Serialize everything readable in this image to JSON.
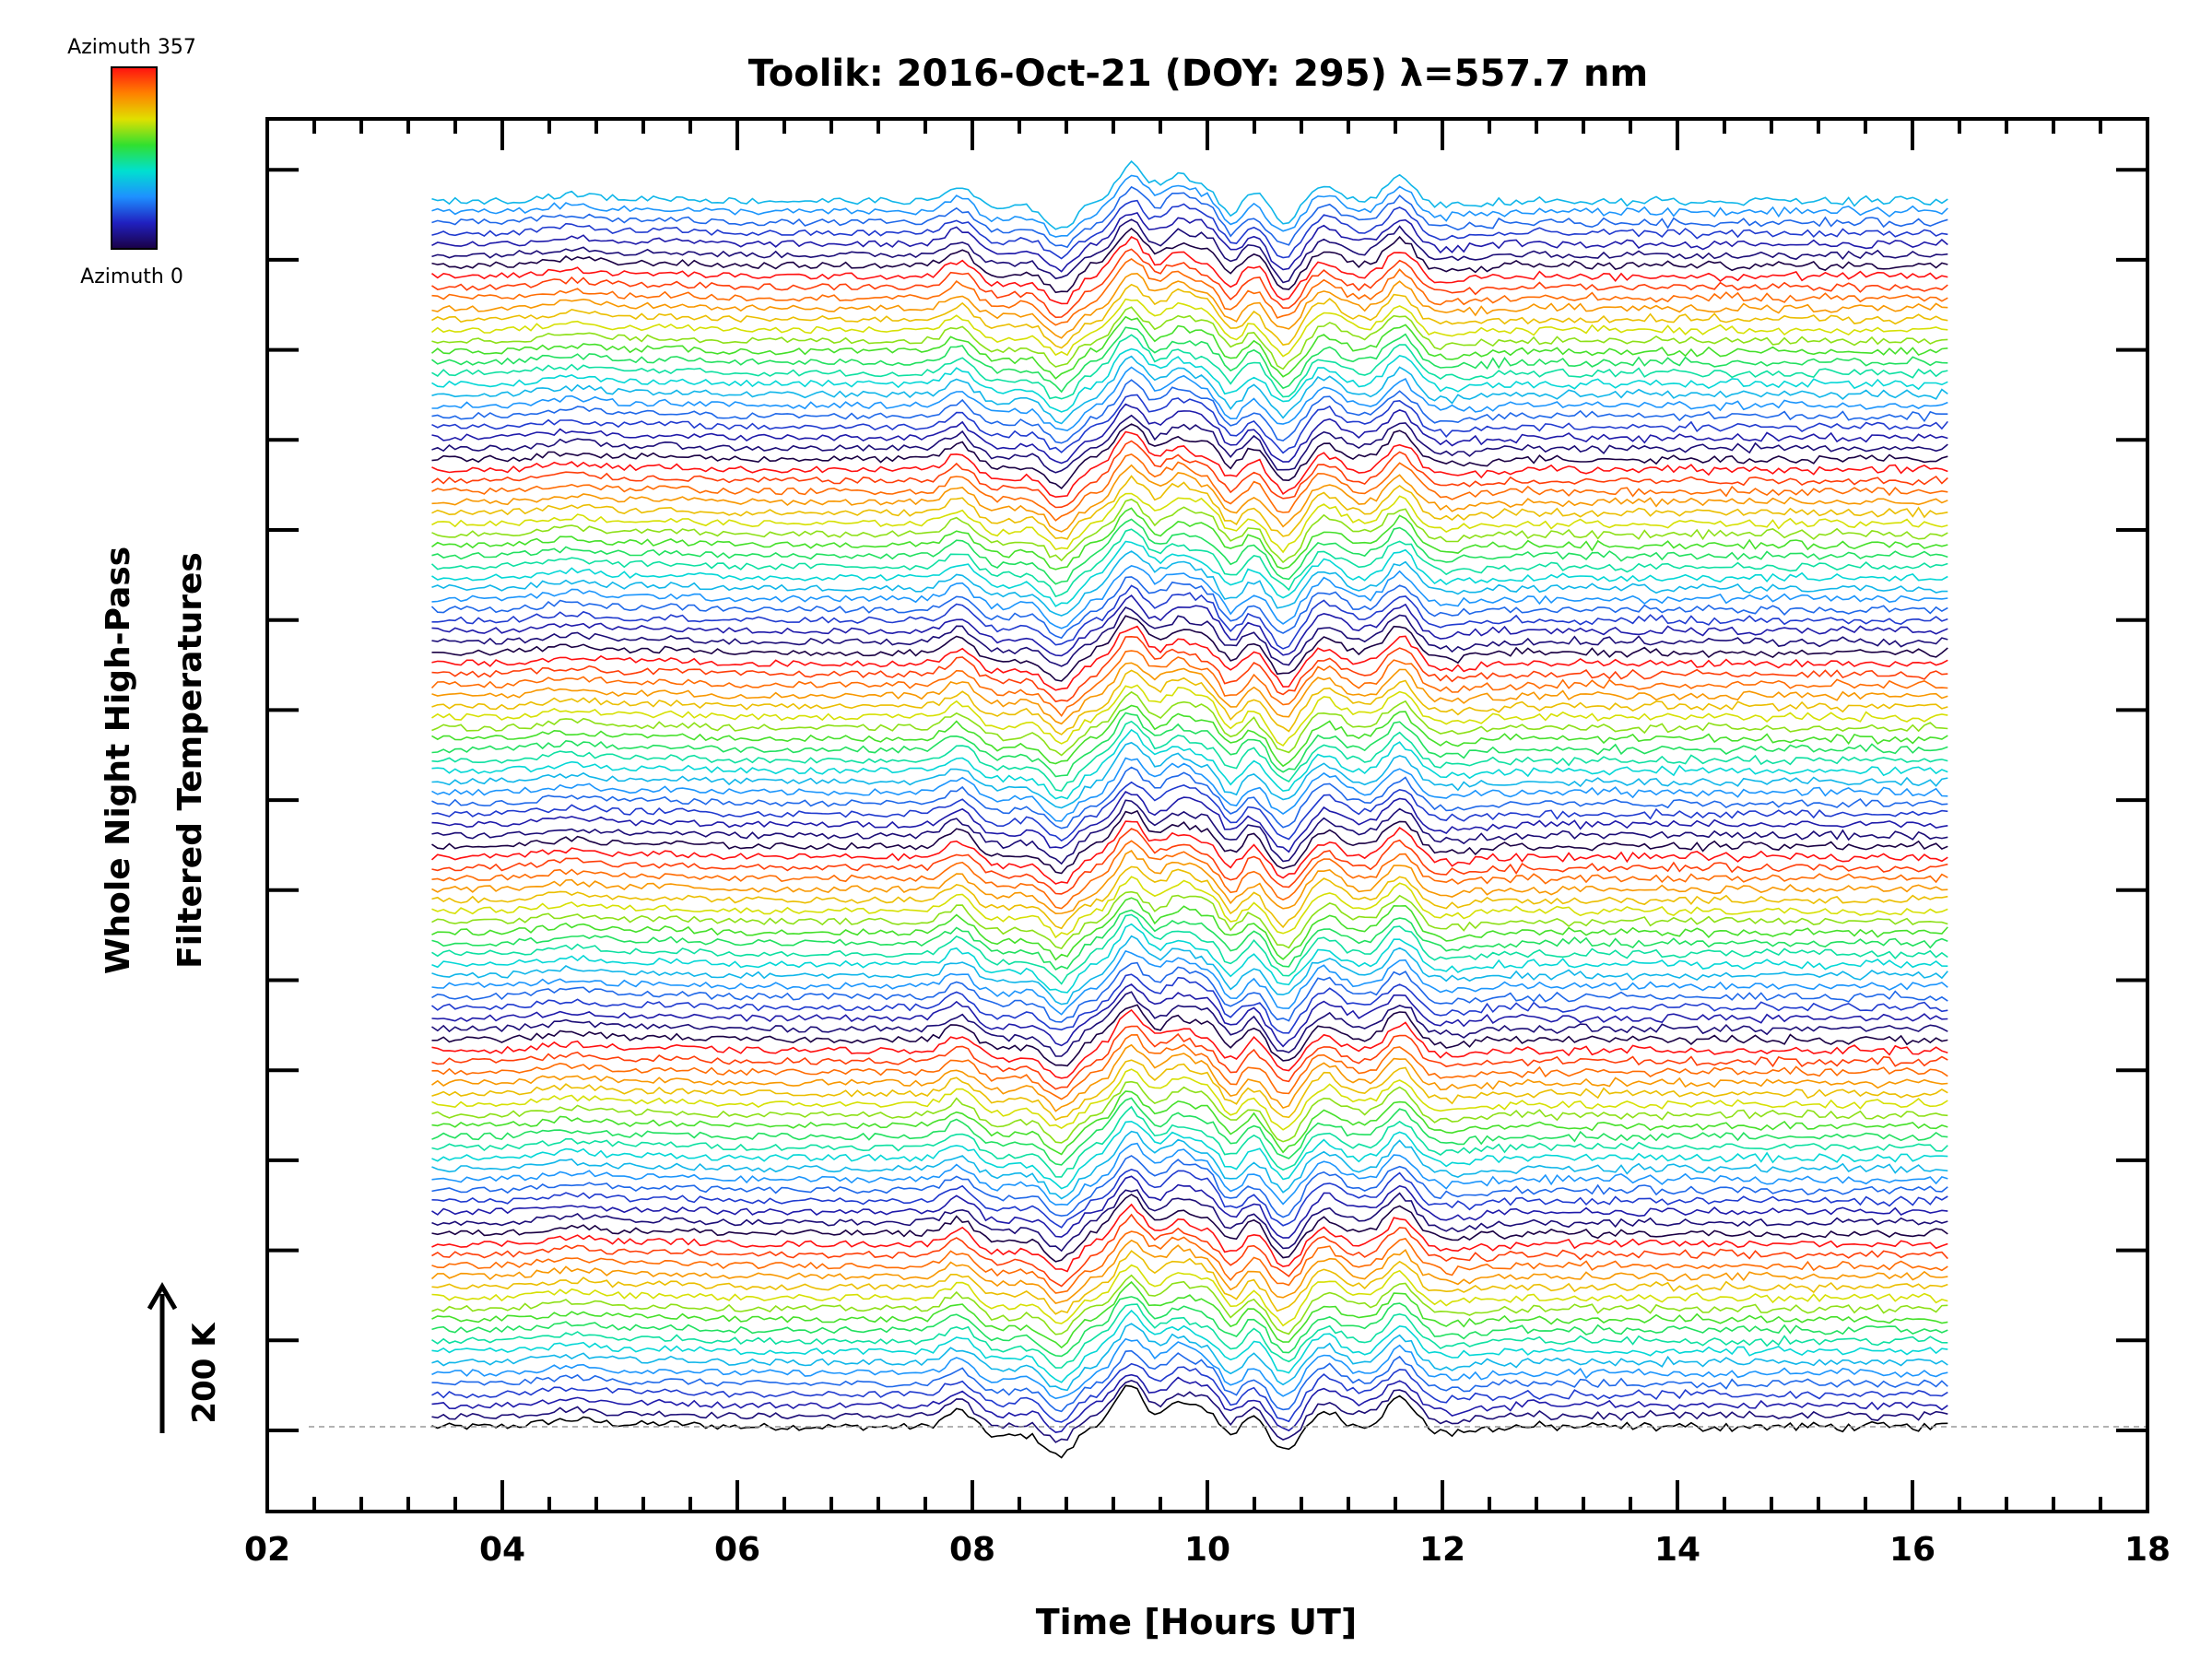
{
  "chart_data": {
    "type": "line",
    "title": "Toolik: 2016-Oct-21 (DOY: 295) λ=557.7 nm",
    "xlabel": "Time [Hours UT]",
    "ylabel_line1": "Whole Night High-Pass",
    "ylabel_line2": "Filtered Temperatures",
    "xlim": [
      2,
      18
    ],
    "x_tick_labels": [
      "02",
      "04",
      "06",
      "08",
      "10",
      "12",
      "14",
      "16",
      "18"
    ],
    "x_tick_values": [
      2,
      4,
      6,
      8,
      10,
      12,
      14,
      16,
      18
    ],
    "data_time_range": [
      3.4,
      16.3
    ],
    "scale_bar_label": "200 K",
    "colorbar": {
      "top_label": "Azimuth 357",
      "bottom_label": "Azimuth 0",
      "colormap": "rainbow"
    },
    "num_traces": 115,
    "zones_per_ring": 18,
    "wave_features": [
      {
        "time": 7.9,
        "amplitude": 1.0
      },
      {
        "time": 8.2,
        "amplitude": -0.5
      },
      {
        "time": 8.75,
        "amplitude": -1.4
      },
      {
        "time": 9.35,
        "amplitude": 1.9
      },
      {
        "time": 9.75,
        "amplitude": 1.3
      },
      {
        "time": 10.05,
        "amplitude": 1.2
      },
      {
        "time": 10.2,
        "amplitude": -1.5
      },
      {
        "time": 10.35,
        "amplitude": 1.0
      },
      {
        "time": 10.65,
        "amplitude": -1.3
      },
      {
        "time": 11.0,
        "amplitude": 0.9
      },
      {
        "time": 11.65,
        "amplitude": 1.5
      },
      {
        "time": 12.0,
        "amplitude": -0.3
      },
      {
        "time": 4.6,
        "amplitude": 0.35
      },
      {
        "time": 5.4,
        "amplitude": 0.15
      }
    ]
  },
  "colors": {
    "axis": "#000000",
    "baseline_dash": "#999999",
    "colorbar_stops": [
      "#1a0044",
      "#2020c0",
      "#1e90ff",
      "#00e0d0",
      "#30e030",
      "#e0e000",
      "#ff8000",
      "#ff1010"
    ]
  }
}
